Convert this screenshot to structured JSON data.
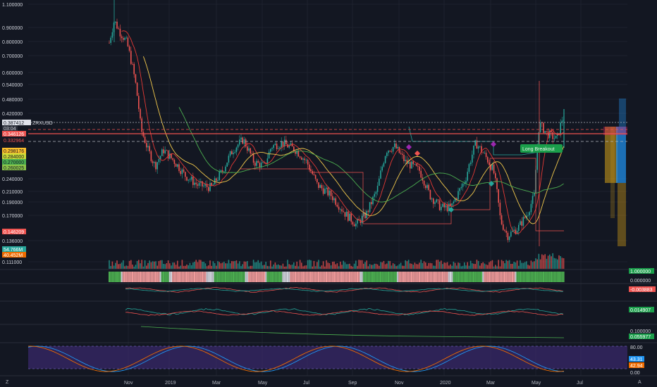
{
  "symbol": "ZRXUSD",
  "price_badges": {
    "current": "0.387412",
    "countdown": "03:04",
    "red_upper": "0.346126",
    "red_lower": "0.332964",
    "yellow_1": "0.298176",
    "yellow_2": "0.284000",
    "green_1": "0.270000",
    "green_2": "0.260025",
    "red_low": "0.146209",
    "vol_1": "54.766M",
    "vol_2": "40.452M"
  },
  "price_axis_ticks": [
    "1.100000",
    "0.900000",
    "0.800000",
    "0.700000",
    "0.600000",
    "0.540000",
    "0.480000",
    "0.420000",
    "0.240000",
    "0.210000",
    "0.190000",
    "0.170000",
    "0.136000",
    "0.111000"
  ],
  "annotation": "Long Breakout",
  "indicator_values": {
    "pane1": "1.000000",
    "pane1_zero": "0.000000",
    "pane2": "-0.003883",
    "pane3": "0.014907",
    "pane4_top": "0.100000",
    "pane4": "0.055977",
    "rsi_top": "80.00",
    "rsi_1": "43.31",
    "rsi_2": "42.94",
    "rsi_bottom": "0.00"
  },
  "time_axis": [
    "Nov",
    "2019",
    "Mar",
    "May",
    "Jul",
    "Sep",
    "Nov",
    "2020",
    "Mar",
    "May",
    "Jul"
  ],
  "corner_icons": {
    "left": "Z",
    "right": "A"
  },
  "colors": {
    "background": "#131722",
    "up": "#26a69a",
    "down": "#ef5350",
    "ma_yellow": "#f2c94c",
    "ma_green": "#4caf50",
    "ma_red": "#e53935",
    "rsi_fill": "#3a2a6e",
    "badge_green": "#1b9e4b"
  },
  "chart_data": {
    "type": "candlestick",
    "symbol": "ZRXUSD",
    "x": [
      "Nov",
      "2019",
      "Mar",
      "May",
      "Jul",
      "Sep",
      "Nov",
      "2020",
      "Mar",
      "May"
    ],
    "close_approx": [
      0.78,
      0.26,
      0.23,
      0.31,
      0.3,
      0.16,
      0.3,
      0.2,
      0.14,
      0.39
    ],
    "ylim": [
      0.111,
      1.1
    ],
    "scale": "log"
  }
}
